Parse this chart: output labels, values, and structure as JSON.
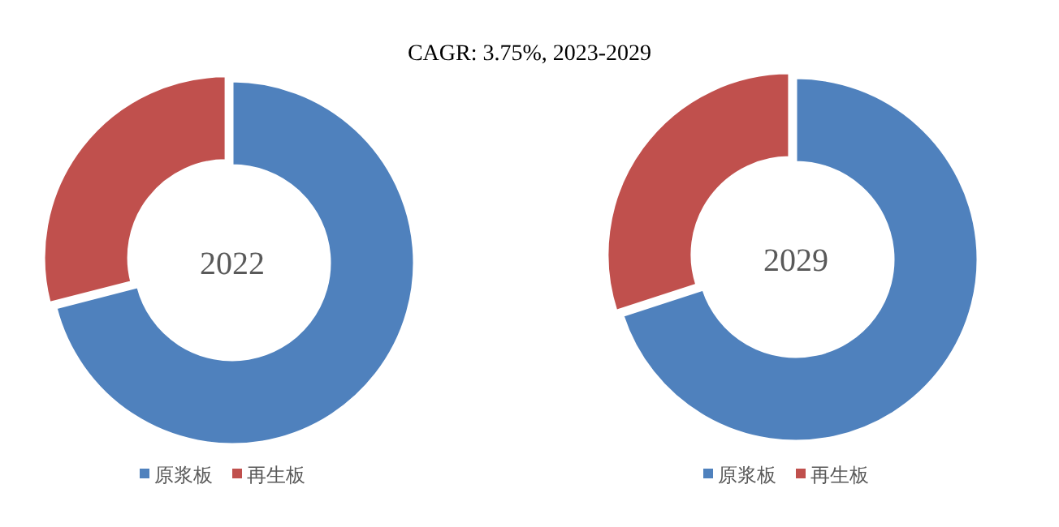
{
  "chart_data": [
    {
      "type": "donut",
      "title": "2022",
      "annotations": [
        "CAGR: 3.75%, 2023-2029"
      ],
      "categories": [
        "原浆板",
        "再生板"
      ],
      "values": [
        71,
        29
      ],
      "colors": [
        "#4f81bd",
        "#c0504d"
      ],
      "legend": "bottom"
    },
    {
      "type": "donut",
      "title": "2029",
      "categories": [
        "原浆板",
        "再生板"
      ],
      "values": [
        70,
        30
      ],
      "colors": [
        "#4f81bd",
        "#c0504d"
      ],
      "legend": "bottom"
    }
  ]
}
